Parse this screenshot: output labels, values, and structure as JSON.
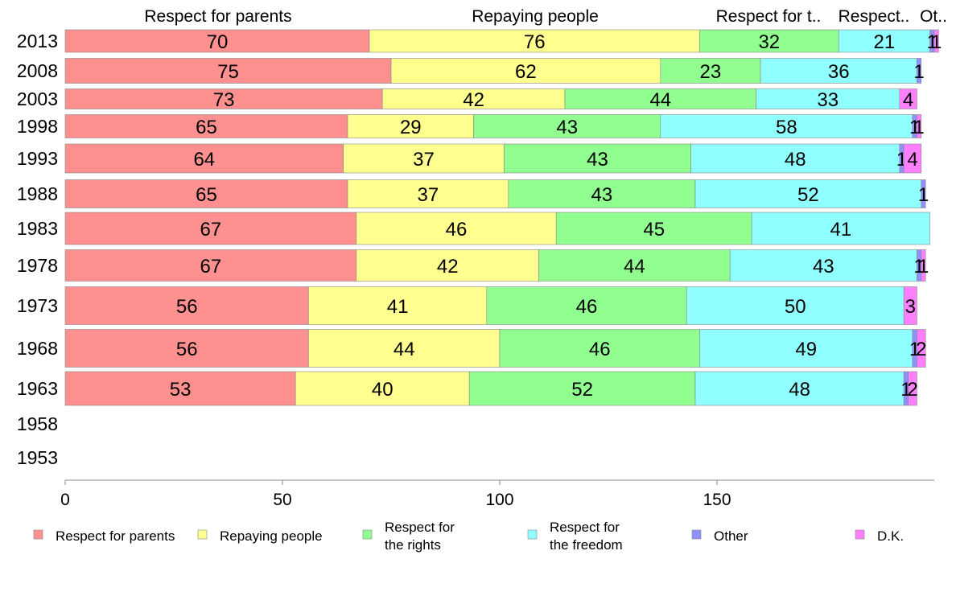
{
  "chart_data": {
    "type": "bar",
    "orientation": "horizontal",
    "stacked": true,
    "categories": [
      "2013",
      "2008",
      "2003",
      "1998",
      "1993",
      "1988",
      "1983",
      "1978",
      "1973",
      "1968",
      "1963",
      "1958",
      "1953"
    ],
    "series": [
      {
        "name": "Respect for parents",
        "color": "#ff9090",
        "values": [
          70,
          75,
          73,
          65,
          64,
          65,
          67,
          67,
          56,
          56,
          53,
          null,
          null
        ]
      },
      {
        "name": "Repaying people",
        "color": "#ffff90",
        "values": [
          76,
          62,
          42,
          29,
          37,
          37,
          46,
          42,
          41,
          44,
          40,
          null,
          null
        ]
      },
      {
        "name": "Respect for the rights",
        "color": "#90ff90",
        "values": [
          32,
          23,
          44,
          43,
          43,
          43,
          45,
          44,
          46,
          46,
          52,
          null,
          null
        ]
      },
      {
        "name": "Respect for the freedom",
        "color": "#90ffff",
        "values": [
          21,
          36,
          33,
          58,
          48,
          52,
          41,
          43,
          50,
          49,
          48,
          null,
          null
        ]
      },
      {
        "name": "Other",
        "color": "#9090ff",
        "values": [
          1,
          1,
          0,
          1,
          1,
          1,
          0,
          1,
          0,
          1,
          1,
          null,
          null
        ]
      },
      {
        "name": "D.K.",
        "color": "#ff80ff",
        "values": [
          1,
          0,
          4,
          1,
          4,
          0,
          0,
          1,
          3,
          2,
          2,
          null,
          null
        ]
      }
    ],
    "top_labels": [
      "Respect for parents",
      "Repaying people",
      "Respect for t..",
      "Respect..",
      "Ot.."
    ],
    "legend_lines": [
      [
        "Respect for parents"
      ],
      [
        "Repaying people"
      ],
      [
        "Respect for",
        "the rights"
      ],
      [
        "Respect for",
        "the freedom"
      ],
      [
        "Other"
      ],
      [
        "D.K."
      ]
    ],
    "x_ticks": [
      0,
      50,
      100,
      150
    ],
    "xlim": [
      0,
      200
    ],
    "legend_position": "bottom"
  }
}
